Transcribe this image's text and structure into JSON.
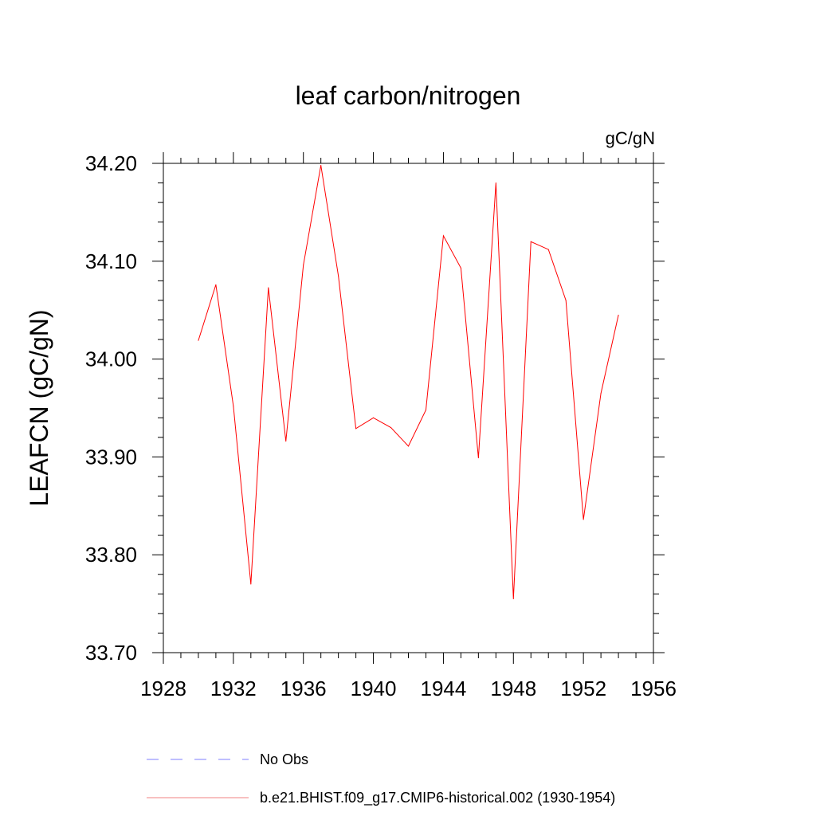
{
  "chart_data": {
    "type": "line",
    "title": "leaf carbon/nitrogen",
    "units_label": "gC/gN",
    "ylabel": "LEAFCN  (gC/gN)",
    "xlabel": "",
    "xlim": [
      1928,
      1956
    ],
    "ylim": [
      33.7,
      34.2
    ],
    "x_ticks": [
      "1928",
      "1932",
      "1936",
      "1940",
      "1944",
      "1948",
      "1952",
      "1956"
    ],
    "y_ticks": [
      "33.70",
      "33.80",
      "33.90",
      "34.00",
      "34.10",
      "34.20"
    ],
    "grid": false,
    "colors": {
      "model": "#ff0000",
      "obs": "#7f7fff"
    },
    "series": [
      {
        "name": "b.e21.BHIST.f09_g17.CMIP6-historical.002 (1930-1954)",
        "x": [
          1930,
          1931,
          1932,
          1933,
          1934,
          1935,
          1936,
          1937,
          1938,
          1939,
          1940,
          1941,
          1942,
          1943,
          1944,
          1945,
          1946,
          1947,
          1948,
          1949,
          1950,
          1951,
          1952,
          1953,
          1954
        ],
        "y": [
          34.019,
          34.076,
          33.952,
          33.77,
          34.073,
          33.916,
          34.096,
          34.198,
          34.085,
          33.929,
          33.94,
          33.93,
          33.911,
          33.948,
          34.126,
          34.093,
          33.899,
          34.18,
          33.755,
          34.12,
          34.112,
          34.06,
          33.836,
          33.965,
          34.045
        ]
      }
    ],
    "legend": {
      "placement": "bottom",
      "entries": [
        {
          "label": "No Obs",
          "style": "dashed",
          "color": "#7f7fff"
        },
        {
          "label": "b.e21.BHIST.f09_g17.CMIP6-historical.002 (1930-1954)",
          "style": "solid",
          "color": "#ff0000"
        }
      ]
    }
  }
}
